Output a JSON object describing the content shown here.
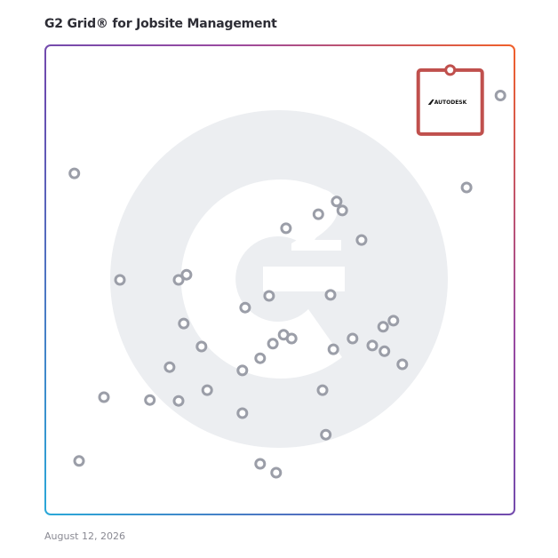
{
  "title": "G2 Grid® for Jobsite Management",
  "date": "August 12, 2026",
  "highlight_product": {
    "logo_text": "AUTODESK",
    "color": "#c0504d"
  },
  "colors": {
    "background_logo": "#eceef1",
    "point": "#9b9ea8",
    "quadrant_line": "#8b5aa6"
  },
  "chart_data": {
    "type": "scatter",
    "title": "G2 Grid® for Jobsite Management",
    "xlabel": "",
    "ylabel": "",
    "xlim": [
      0,
      1
    ],
    "ylim": [
      0,
      1
    ],
    "grid": "quadrants",
    "highlighted": {
      "label": "AUTODESK",
      "x": 0.863,
      "y": 0.951
    },
    "points": [
      {
        "x": 0.97,
        "y": 0.893
      },
      {
        "x": 0.898,
        "y": 0.697
      },
      {
        "x": 0.062,
        "y": 0.727
      },
      {
        "x": 0.621,
        "y": 0.667
      },
      {
        "x": 0.633,
        "y": 0.648
      },
      {
        "x": 0.582,
        "y": 0.64
      },
      {
        "x": 0.513,
        "y": 0.61
      },
      {
        "x": 0.674,
        "y": 0.585
      },
      {
        "x": 0.159,
        "y": 0.5
      },
      {
        "x": 0.301,
        "y": 0.511
      },
      {
        "x": 0.284,
        "y": 0.5
      },
      {
        "x": 0.477,
        "y": 0.466
      },
      {
        "x": 0.608,
        "y": 0.468
      },
      {
        "x": 0.426,
        "y": 0.441
      },
      {
        "x": 0.295,
        "y": 0.407
      },
      {
        "x": 0.742,
        "y": 0.413
      },
      {
        "x": 0.72,
        "y": 0.4
      },
      {
        "x": 0.655,
        "y": 0.375
      },
      {
        "x": 0.508,
        "y": 0.383
      },
      {
        "x": 0.525,
        "y": 0.375
      },
      {
        "x": 0.485,
        "y": 0.364
      },
      {
        "x": 0.333,
        "y": 0.358
      },
      {
        "x": 0.697,
        "y": 0.36
      },
      {
        "x": 0.614,
        "y": 0.352
      },
      {
        "x": 0.723,
        "y": 0.348
      },
      {
        "x": 0.458,
        "y": 0.333
      },
      {
        "x": 0.761,
        "y": 0.32
      },
      {
        "x": 0.265,
        "y": 0.314
      },
      {
        "x": 0.42,
        "y": 0.307
      },
      {
        "x": 0.345,
        "y": 0.265
      },
      {
        "x": 0.591,
        "y": 0.265
      },
      {
        "x": 0.125,
        "y": 0.25
      },
      {
        "x": 0.223,
        "y": 0.244
      },
      {
        "x": 0.284,
        "y": 0.242
      },
      {
        "x": 0.42,
        "y": 0.216
      },
      {
        "x": 0.598,
        "y": 0.17
      },
      {
        "x": 0.072,
        "y": 0.114
      },
      {
        "x": 0.458,
        "y": 0.108
      },
      {
        "x": 0.492,
        "y": 0.089
      }
    ]
  }
}
